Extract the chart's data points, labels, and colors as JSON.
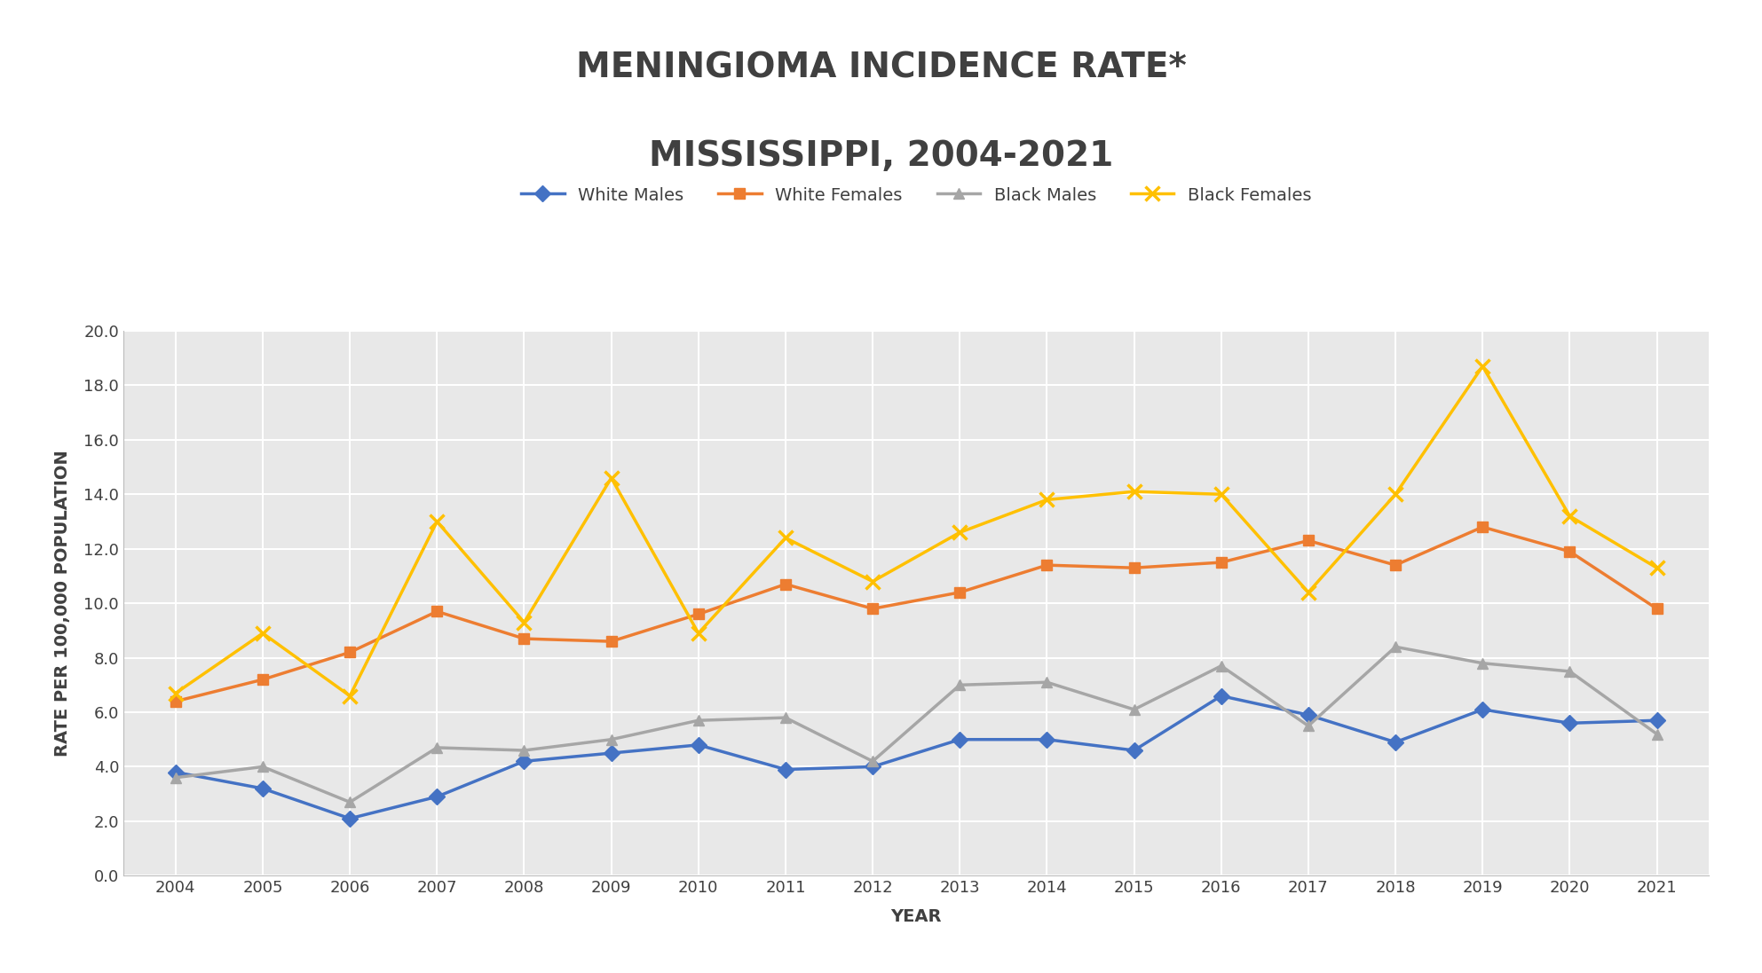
{
  "title_line1": "MENINGIOMA INCIDENCE RATE*",
  "title_line2": "MISSISSIPPI, 2004-2021",
  "xlabel": "YEAR",
  "ylabel": "RATE PER 100,000 POPULATION",
  "years": [
    2004,
    2005,
    2006,
    2007,
    2008,
    2009,
    2010,
    2011,
    2012,
    2013,
    2014,
    2015,
    2016,
    2017,
    2018,
    2019,
    2020,
    2021
  ],
  "white_males": [
    3.8,
    3.2,
    2.1,
    2.9,
    4.2,
    4.5,
    4.8,
    3.9,
    4.0,
    5.0,
    5.0,
    4.6,
    6.6,
    5.9,
    4.9,
    6.1,
    5.6,
    5.7
  ],
  "white_females": [
    6.4,
    7.2,
    8.2,
    9.7,
    8.7,
    8.6,
    9.6,
    10.7,
    9.8,
    10.4,
    11.4,
    11.3,
    11.5,
    12.3,
    11.4,
    12.8,
    11.9,
    9.8
  ],
  "black_males": [
    3.6,
    4.0,
    2.7,
    4.7,
    4.6,
    5.0,
    5.7,
    5.8,
    4.2,
    7.0,
    7.1,
    6.1,
    7.7,
    5.5,
    8.4,
    7.8,
    7.5,
    5.2
  ],
  "black_females": [
    6.7,
    8.9,
    6.6,
    13.0,
    9.3,
    14.6,
    8.9,
    12.4,
    10.8,
    12.6,
    13.8,
    14.1,
    14.0,
    10.4,
    14.0,
    18.7,
    13.2,
    11.3
  ],
  "series_colors": [
    "#4472C4",
    "#ED7D31",
    "#A6A6A6",
    "#FFC000"
  ],
  "series_markers": [
    "D",
    "s",
    "^",
    "x"
  ],
  "series_labels": [
    "White Males",
    "White Females",
    "Black Males",
    "Black Females"
  ],
  "ylim": [
    0.0,
    20.0
  ],
  "yticks": [
    0.0,
    2.0,
    4.0,
    6.0,
    8.0,
    10.0,
    12.0,
    14.0,
    16.0,
    18.0,
    20.0
  ],
  "plot_bg": "#e8e8e8",
  "fig_bg": "#ffffff",
  "grid_color": "#ffffff",
  "title_fontsize": 28,
  "axis_label_fontsize": 14,
  "tick_fontsize": 13,
  "legend_fontsize": 14,
  "line_width": 2.5,
  "marker_size": 9,
  "title_color": "#404040"
}
